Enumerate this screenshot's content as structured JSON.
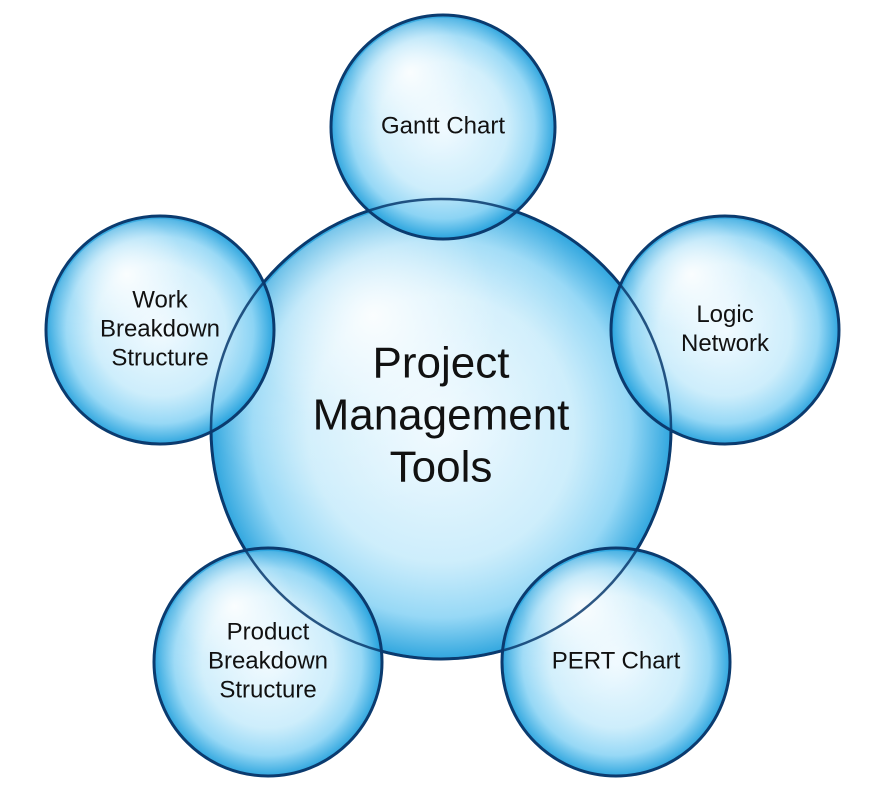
{
  "diagram": {
    "center": {
      "lines": [
        "Project",
        "Management",
        "Tools"
      ]
    },
    "satellites": [
      {
        "id": "gantt-chart",
        "lines": [
          "Gantt Chart"
        ]
      },
      {
        "id": "logic-network",
        "lines": [
          "Logic",
          "Network"
        ]
      },
      {
        "id": "pert-chart",
        "lines": [
          "PERT Chart"
        ]
      },
      {
        "id": "product-breakdown-structure",
        "lines": [
          "Product",
          "Breakdown",
          "Structure"
        ]
      },
      {
        "id": "work-breakdown-structure",
        "lines": [
          "Work",
          "Breakdown",
          "Structure"
        ]
      }
    ],
    "colors": {
      "fill_light": "#eef9ff",
      "fill_mid": "#a9ddf7",
      "fill_dark": "#1f9fdc",
      "outline": "#0b3b6f",
      "text": "#111111"
    }
  }
}
